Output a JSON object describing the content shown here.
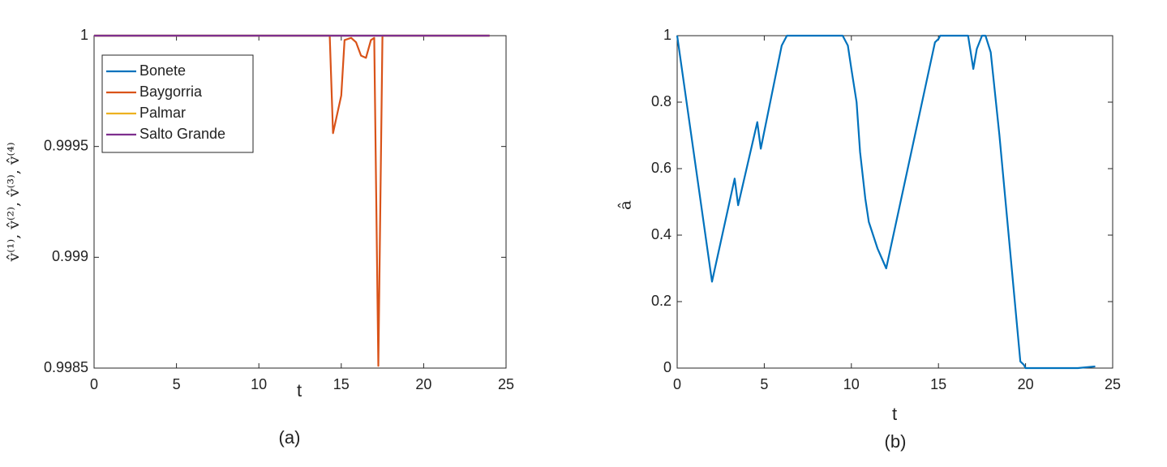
{
  "chart_data": [
    {
      "type": "line",
      "caption": "(a)",
      "x_label": "t",
      "y_label": "v̂⁽¹⁾, v̂⁽²⁾, v̂⁽³⁾, v̂⁽⁴⁾",
      "x": [
        0,
        14.3,
        14.5,
        15,
        15.2,
        15.6,
        15.9,
        16.2,
        16.5,
        16.8,
        17.0,
        17.25,
        17.5,
        24
      ],
      "series": [
        {
          "name": "Bonete",
          "color": "#0072bd",
          "values": [
            1,
            1,
            1,
            1,
            1,
            1,
            1,
            1,
            1,
            1,
            1,
            1,
            1,
            1
          ]
        },
        {
          "name": "Baygorria",
          "color": "#d95319",
          "values": [
            1,
            1,
            0.99956,
            0.99973,
            0.99998,
            0.99999,
            0.99997,
            0.99991,
            0.9999,
            0.99998,
            0.99999,
            0.99851,
            1,
            1
          ]
        },
        {
          "name": "Palmar",
          "color": "#edb120",
          "values": [
            1,
            1,
            1,
            1,
            1,
            1,
            1,
            1,
            1,
            1,
            1,
            1,
            1,
            1
          ]
        },
        {
          "name": "Salto Grande",
          "color": "#7e2f8e",
          "values": [
            1,
            1,
            1,
            1,
            1,
            1,
            1,
            1,
            1,
            1,
            1,
            1,
            1,
            1
          ]
        }
      ],
      "xlim": [
        0,
        25
      ],
      "xticks": [
        0,
        5,
        10,
        15,
        20,
        25
      ],
      "ylim": [
        0.9985,
        1
      ],
      "yticks": [
        0.9985,
        0.999,
        0.9995,
        1
      ],
      "legend": "northwest"
    },
    {
      "type": "line",
      "caption": "(b)",
      "x_label": "t",
      "y_label": "â",
      "x": [
        0,
        2,
        3.3,
        3.5,
        4.6,
        4.8,
        6,
        6.3,
        9.5,
        9.8,
        10,
        10.3,
        10.5,
        10.8,
        11,
        11.5,
        12,
        14.8,
        15,
        15.1,
        16.7,
        17,
        17.2,
        17.5,
        17.7,
        18,
        18.5,
        19.1,
        19.7,
        19.9,
        20,
        23,
        24
      ],
      "values": [
        1,
        0.26,
        0.57,
        0.49,
        0.74,
        0.66,
        0.97,
        1,
        1,
        0.97,
        0.9,
        0.8,
        0.65,
        0.51,
        0.44,
        0.36,
        0.3,
        0.98,
        0.99,
        1,
        1,
        0.9,
        0.96,
        1,
        1,
        0.95,
        0.7,
        0.36,
        0.02,
        0.01,
        0,
        0,
        0.005
      ],
      "color": "#0072bd",
      "xlim": [
        0,
        25
      ],
      "xticks": [
        0,
        5,
        10,
        15,
        20,
        25
      ],
      "ylim": [
        0,
        1
      ],
      "yticks": [
        0,
        0.2,
        0.4,
        0.6,
        0.8,
        1
      ]
    }
  ]
}
